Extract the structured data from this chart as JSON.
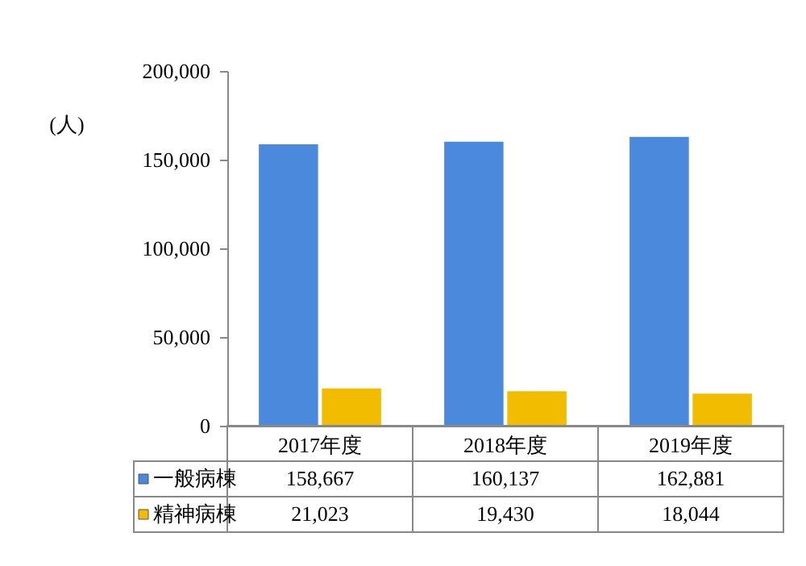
{
  "chart_data": {
    "type": "bar",
    "ylabel": "(人)",
    "categories": [
      "2017年度",
      "2018年度",
      "2019年度"
    ],
    "series": [
      {
        "name": "一般病棟",
        "color": "#4a89dc",
        "values": [
          158667,
          160137,
          162881
        ],
        "value_labels": [
          "158,667",
          "160,137",
          "162,881"
        ]
      },
      {
        "name": "精神病棟",
        "color": "#f2bd00",
        "values": [
          21023,
          19430,
          18044
        ],
        "value_labels": [
          "21,023",
          "19,430",
          "18,044"
        ]
      }
    ],
    "ylim": [
      0,
      200000
    ],
    "yticks": [
      0,
      {
        "value": 50000,
        "label": "50,000"
      },
      {
        "value": 100000,
        "label": "100,000"
      },
      {
        "value": 150000,
        "label": "150,000"
      },
      {
        "value": 200000,
        "label": "200,000"
      }
    ],
    "legend": "bottom",
    "grid": false
  }
}
